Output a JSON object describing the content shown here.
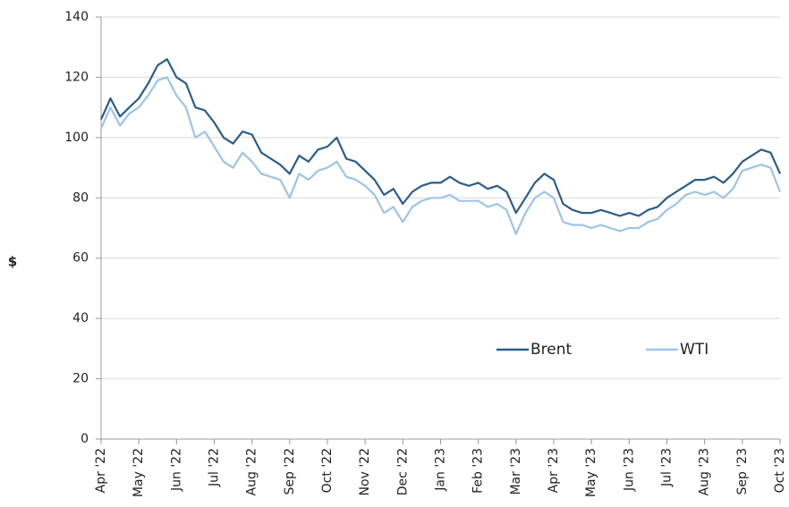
{
  "chart_data": {
    "type": "line",
    "y_label": "$",
    "categories": [
      "Apr '22",
      null,
      null,
      null,
      "May '22",
      null,
      null,
      null,
      "Jun '22",
      null,
      null,
      null,
      "Jul '22",
      null,
      null,
      null,
      "Aug '22",
      null,
      null,
      null,
      "Sep '22",
      null,
      null,
      null,
      "Oct '22",
      null,
      null,
      null,
      "Nov '22",
      null,
      null,
      null,
      "Dec '22",
      null,
      null,
      null,
      "Jan '23",
      null,
      null,
      null,
      "Feb '23",
      null,
      null,
      null,
      "Mar '23",
      null,
      null,
      null,
      "Apr '23",
      null,
      null,
      null,
      "May '23",
      null,
      null,
      null,
      "Jun '23",
      null,
      null,
      null,
      "Jul '23",
      null,
      null,
      null,
      "Aug '23",
      null,
      null,
      null,
      "Sep '23",
      null,
      null,
      null,
      "Oct '23"
    ],
    "series": [
      {
        "name": "Brent",
        "color": "#2b5d8a",
        "values": [
          106,
          113,
          107,
          110,
          113,
          118,
          124,
          126,
          120,
          118,
          110,
          109,
          105,
          100,
          98,
          102,
          101,
          95,
          93,
          91,
          88,
          94,
          92,
          96,
          97,
          100,
          93,
          92,
          89,
          86,
          81,
          83,
          78,
          82,
          84,
          85,
          85,
          87,
          85,
          84,
          85,
          83,
          84,
          82,
          75,
          80,
          85,
          88,
          86,
          78,
          76,
          75,
          75,
          76,
          75,
          74,
          75,
          74,
          76,
          77,
          80,
          82,
          84,
          86,
          86,
          87,
          85,
          88,
          92,
          94,
          96,
          95,
          88
        ]
      },
      {
        "name": "WTI",
        "color": "#9dc3e6",
        "values": [
          103,
          110,
          104,
          108,
          110,
          114,
          119,
          120,
          114,
          110,
          100,
          102,
          97,
          92,
          90,
          95,
          92,
          88,
          87,
          86,
          80,
          88,
          86,
          89,
          90,
          92,
          87,
          86,
          84,
          81,
          75,
          77,
          72,
          77,
          79,
          80,
          80,
          81,
          79,
          79,
          79,
          77,
          78,
          76,
          68,
          75,
          80,
          82,
          80,
          72,
          71,
          71,
          70,
          71,
          70,
          69,
          70,
          70,
          72,
          73,
          76,
          78,
          81,
          82,
          81,
          82,
          80,
          83,
          89,
          90,
          91,
          90,
          82
        ]
      }
    ],
    "ylim": [
      0,
      140
    ],
    "yticks": [
      0,
      20,
      40,
      60,
      80,
      100,
      120,
      140
    ],
    "grid": true,
    "legend": "lower right"
  }
}
